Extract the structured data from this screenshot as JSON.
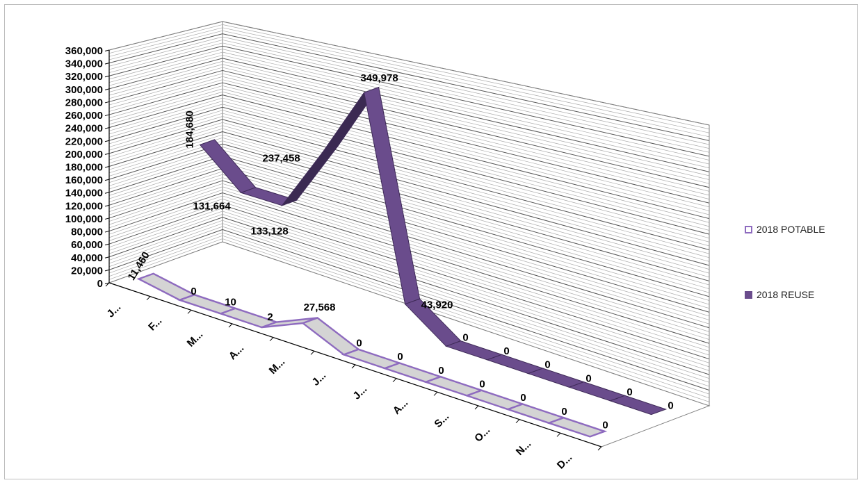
{
  "chart_data": {
    "type": "line",
    "style": "3d-ribbon",
    "categories": [
      "J...",
      "F...",
      "M...",
      "A...",
      "M...",
      "J...",
      "J...",
      "A...",
      "S...",
      "O...",
      "N...",
      "D..."
    ],
    "series": [
      {
        "name": "2018 POTABLE",
        "values": [
          11460,
          0,
          10,
          2,
          27568,
          0,
          0,
          0,
          0,
          0,
          0,
          0
        ],
        "labels": [
          "11,460",
          "0",
          "10",
          "2",
          "27,568",
          "0",
          "0",
          "0",
          "0",
          "0",
          "0",
          "0"
        ],
        "color": "#d4d4d4",
        "edge_color": "#8e6bbf"
      },
      {
        "name": "2018 REUSE",
        "values": [
          184680,
          131664,
          133128,
          237458,
          349978,
          43920,
          0,
          0,
          0,
          0,
          0,
          0
        ],
        "labels": [
          "184,680",
          "131,664",
          "133,128",
          "237,458",
          "349,978",
          "43,920",
          "0",
          "0",
          "0",
          "0",
          "0",
          "0"
        ],
        "color": "#6a4c8c",
        "edge_color": "#3e2a57"
      }
    ],
    "y_ticks": [
      "0",
      "20,000",
      "40,000",
      "60,000",
      "80,000",
      "100,000",
      "120,000",
      "140,000",
      "160,000",
      "180,000",
      "200,000",
      "220,000",
      "240,000",
      "260,000",
      "280,000",
      "300,000",
      "320,000",
      "340,000",
      "360,000"
    ],
    "ylim": [
      0,
      360000
    ],
    "grid": true,
    "legend_position": "right"
  }
}
